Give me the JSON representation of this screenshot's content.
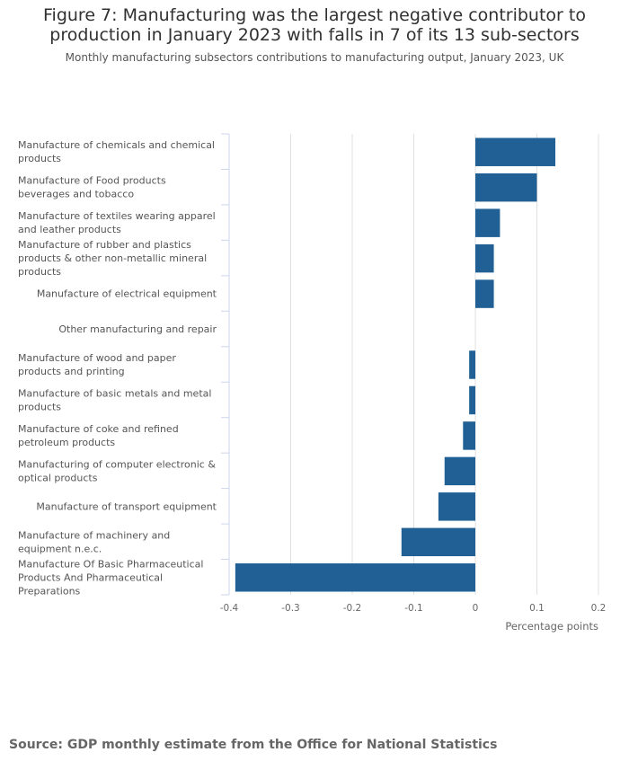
{
  "title": "Figure 7: Manufacturing was the largest negative contributor to production in January 2023 with falls in 7 of its 13 sub-sectors",
  "subtitle": "Monthly manufacturing subsectors contributions to manufacturing output, January 2023, UK",
  "source": "Source: GDP monthly estimate from the Office for National Statistics",
  "colors": {
    "bar": "#206095",
    "grid": "#e0e0e0",
    "axis": "#ccd6eb"
  },
  "chart_data": {
    "type": "bar",
    "orientation": "horizontal",
    "categories": [
      "Manufacture of chemicals and chemical products",
      "Manufacture of Food products beverages and tobacco",
      "Manufacture of textiles wearing apparel and leather products",
      "Manufacture of rubber and plastics products & other non-metallic mineral products",
      "Manufacture of electrical equipment",
      "Other manufacturing and repair",
      "Manufacture of wood and paper products and printing",
      "Manufacture of basic metals and metal products",
      "Manufacture of coke and refined petroleum products",
      "Manufacturing of computer electronic & optical products",
      "Manufacture of transport equipment",
      "Manufacture of machinery and equipment n.e.c.",
      "Manufacture Of Basic Pharmaceutical Products And Pharmaceutical Preparations"
    ],
    "values": [
      0.13,
      0.1,
      0.04,
      0.03,
      0.03,
      0,
      -0.01,
      -0.01,
      -0.02,
      -0.05,
      -0.06,
      -0.12,
      -0.39
    ],
    "xlabel": "Percentage points",
    "xlim": [
      -0.4,
      0.2
    ],
    "xticks": [
      "-0.4",
      "-0.3",
      "-0.2",
      "-0.1",
      "0",
      "0.1",
      "0.2"
    ],
    "grid": true
  }
}
